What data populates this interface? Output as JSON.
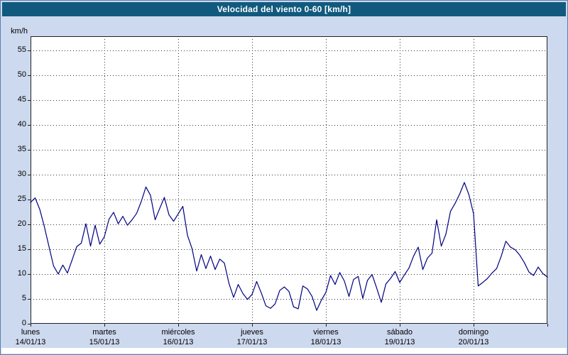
{
  "chart_data": {
    "type": "line",
    "title": "Velocidad del viento 0-60 [km/h]",
    "ylabel": "km/h",
    "ylim": [
      0,
      57.8
    ],
    "yticks": [
      0,
      5,
      10,
      15,
      20,
      25,
      30,
      35,
      40,
      45,
      50,
      55
    ],
    "grid": "dotted",
    "legend": "none",
    "x_axis": {
      "unit": "days",
      "days": [
        {
          "name": "lunes",
          "date": "14/01/13"
        },
        {
          "name": "martes",
          "date": "15/01/13"
        },
        {
          "name": "miércoles",
          "date": "16/01/13"
        },
        {
          "name": "jueves",
          "date": "17/01/13"
        },
        {
          "name": "viernes",
          "date": "18/01/13"
        },
        {
          "name": "sábado",
          "date": "19/01/13"
        },
        {
          "name": "domingo",
          "date": "20/01/13"
        }
      ]
    },
    "series": [
      {
        "name": "velocidad-del-viento",
        "color": "#000080",
        "sample_interval_hours": 1.5,
        "values": [
          24.4,
          25.3,
          23.0,
          19.5,
          15.5,
          11.6,
          10.0,
          11.8,
          10.2,
          12.8,
          15.5,
          16.2,
          20.1,
          15.6,
          19.8,
          16.0,
          17.5,
          21.0,
          22.4,
          20.1,
          21.6,
          19.8,
          20.9,
          22.2,
          24.6,
          27.5,
          25.8,
          20.9,
          23.2,
          25.4,
          21.9,
          20.6,
          22.1,
          23.6,
          17.8,
          15.1,
          10.6,
          13.9,
          11.1,
          13.6,
          10.9,
          13.0,
          12.2,
          8.1,
          5.3,
          7.9,
          6.1,
          4.9,
          5.9,
          8.5,
          6.2,
          3.6,
          3.1,
          4.0,
          6.7,
          7.4,
          6.5,
          3.4,
          3.0,
          7.6,
          7.0,
          5.5,
          2.7,
          4.7,
          6.3,
          9.7,
          7.9,
          10.3,
          8.6,
          5.5,
          8.9,
          9.5,
          5.1,
          8.7,
          9.9,
          7.2,
          4.3,
          8.0,
          9.1,
          10.5,
          8.3,
          9.8,
          11.2,
          13.6,
          15.4,
          10.9,
          13.2,
          14.2,
          20.9,
          15.6,
          18.0,
          22.6,
          24.2,
          26.1,
          28.4,
          25.9,
          22.1,
          7.6,
          8.3,
          9.1,
          10.2,
          11.1,
          13.6,
          16.6,
          15.4,
          14.9,
          13.8,
          12.3,
          10.4,
          9.7,
          11.4,
          10.1,
          9.4
        ]
      }
    ],
    "colors": {
      "title_bar": "#115a7e",
      "title_text": "#ffffff",
      "background": "#cdd9ee",
      "plot_background": "#ffffff",
      "plot_border": "#222222",
      "grid": "#333333",
      "line": "#000080",
      "axis_text": "#000000"
    }
  }
}
